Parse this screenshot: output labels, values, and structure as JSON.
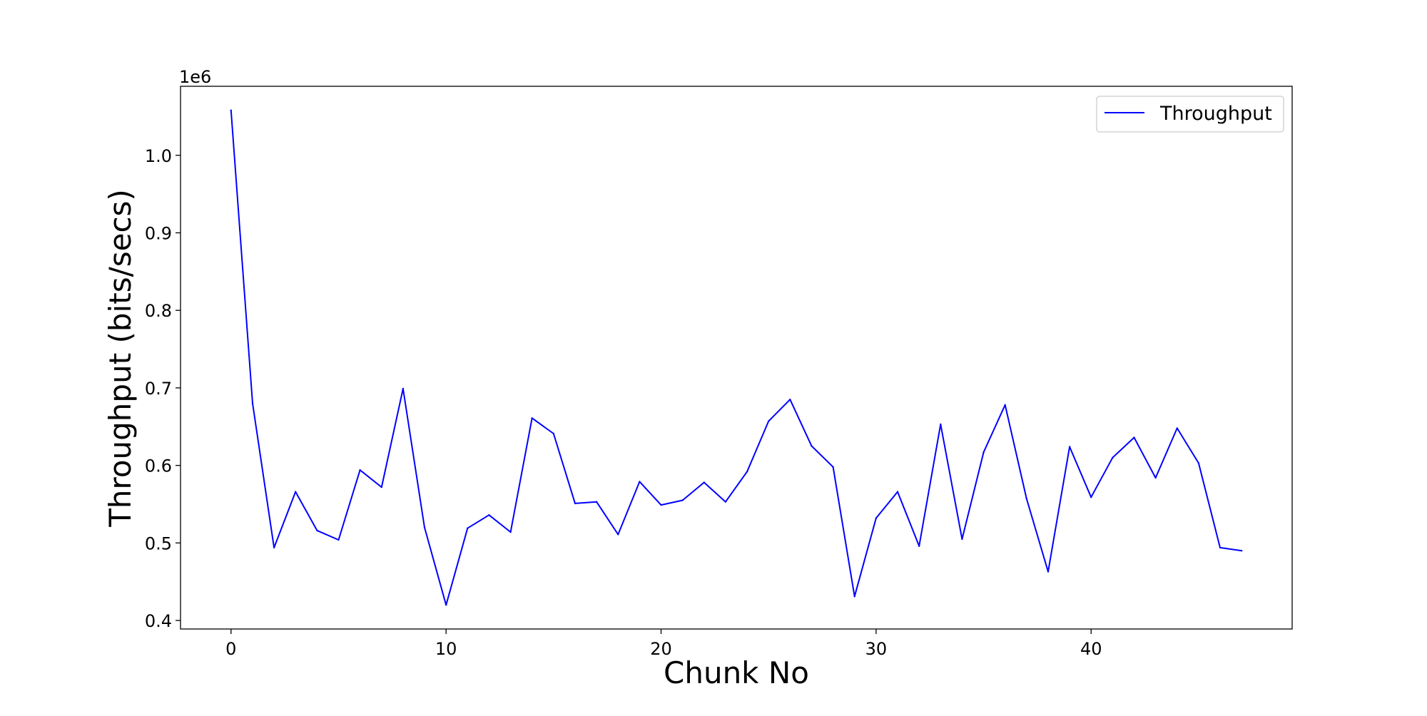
{
  "chart_data": {
    "type": "line",
    "title": "",
    "xlabel": "Chunk No",
    "ylabel": "Throughput (bits/secs)",
    "y_offset_label": "1e6",
    "xlim": [
      -2.35,
      49.35
    ],
    "ylim": [
      0.389,
      1.089
    ],
    "x_ticks": [
      0,
      10,
      20,
      30,
      40
    ],
    "x_tick_labels": [
      "0",
      "10",
      "20",
      "30",
      "40"
    ],
    "y_ticks": [
      0.4,
      0.5,
      0.6,
      0.7,
      0.8,
      0.9,
      1.0
    ],
    "y_tick_labels": [
      "0.4",
      "0.5",
      "0.6",
      "0.7",
      "0.8",
      "0.9",
      "1.0"
    ],
    "grid": false,
    "legend": {
      "position": "top-right",
      "entries": [
        "Throughput"
      ]
    },
    "series": [
      {
        "name": "Throughput",
        "color": "#0000ff",
        "x": [
          0,
          1,
          2,
          3,
          4,
          5,
          6,
          7,
          8,
          9,
          10,
          11,
          12,
          13,
          14,
          15,
          16,
          17,
          18,
          19,
          20,
          21,
          22,
          23,
          24,
          25,
          26,
          27,
          28,
          29,
          30,
          31,
          32,
          33,
          34,
          35,
          36,
          37,
          38,
          39,
          40,
          41,
          42,
          43,
          44,
          45,
          46,
          47
        ],
        "values": [
          1.058,
          0.68,
          0.494,
          0.566,
          0.516,
          0.504,
          0.594,
          0.572,
          0.699,
          0.52,
          0.42,
          0.519,
          0.536,
          0.514,
          0.661,
          0.641,
          0.551,
          0.553,
          0.511,
          0.579,
          0.549,
          0.555,
          0.578,
          0.553,
          0.592,
          0.657,
          0.685,
          0.625,
          0.598,
          0.431,
          0.532,
          0.566,
          0.496,
          0.653,
          0.505,
          0.617,
          0.678,
          0.557,
          0.463,
          0.624,
          0.559,
          0.61,
          0.636,
          0.584,
          0.648,
          0.603,
          0.494,
          0.49
        ]
      }
    ]
  }
}
